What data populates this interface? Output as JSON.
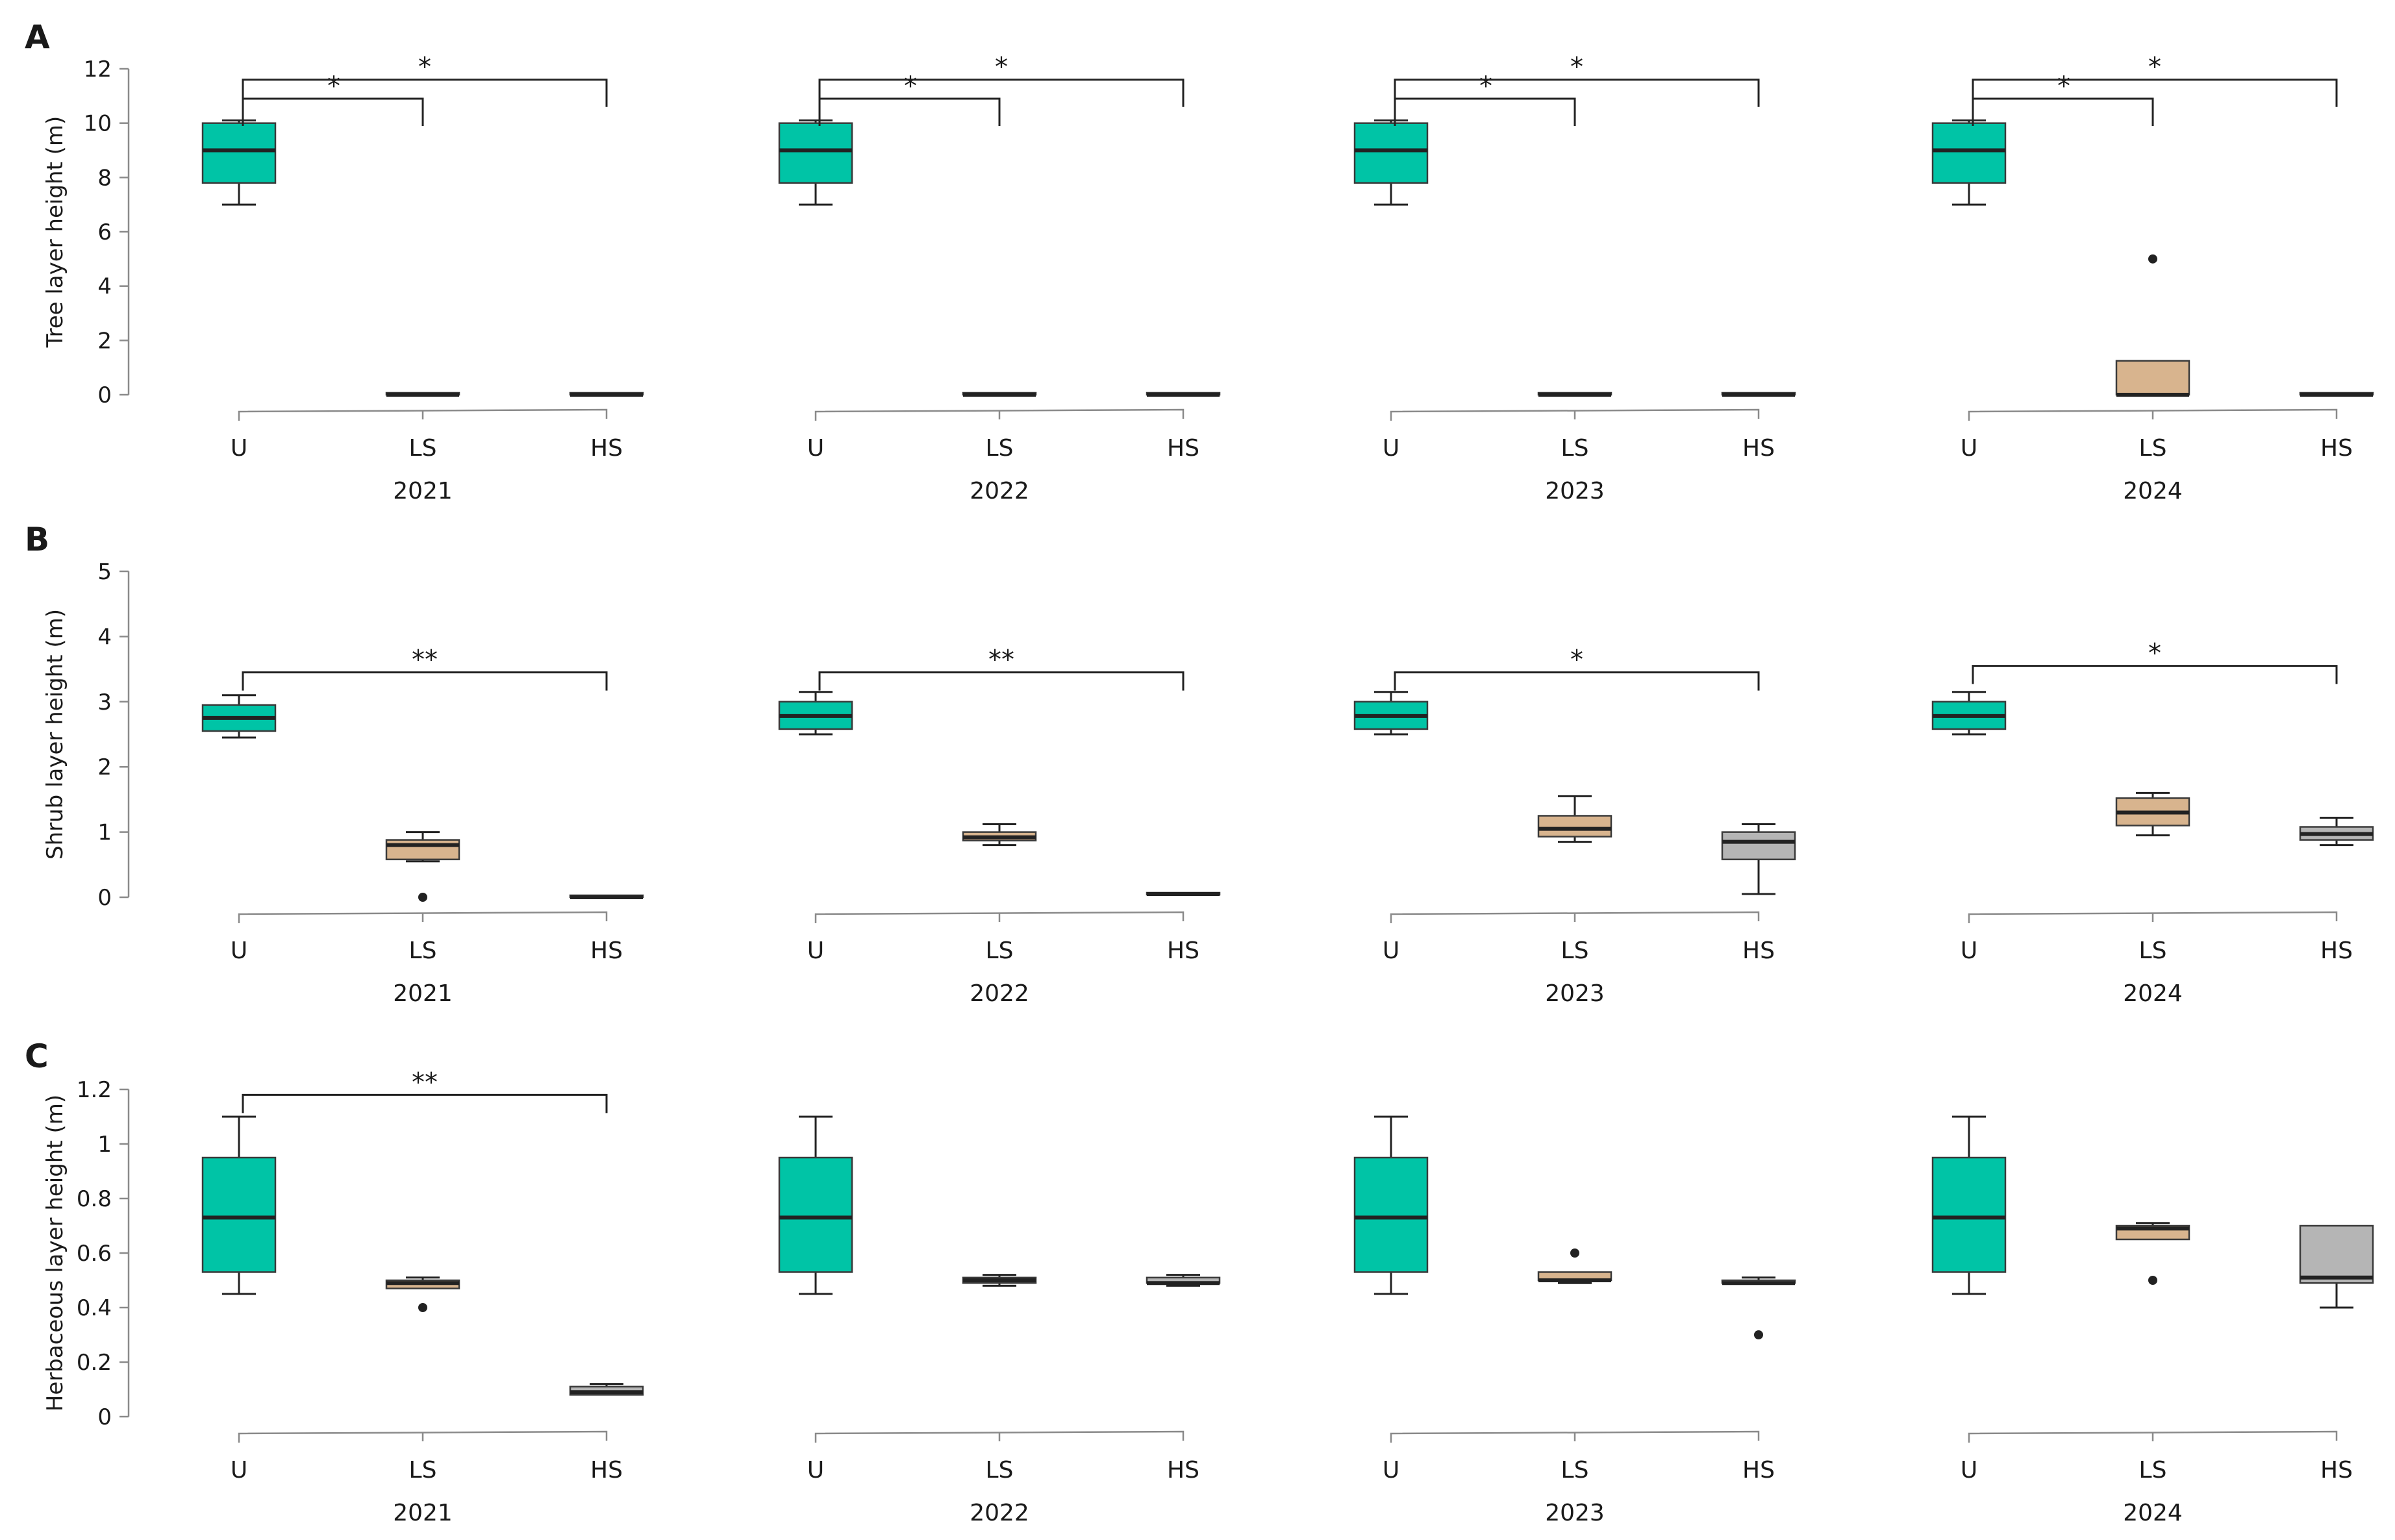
{
  "colors": {
    "U": "#00c4a6",
    "LS": "#d8b48e",
    "HS": "#b5b5b5",
    "line": "#222222"
  },
  "chart_data": [
    {
      "panel": "A",
      "type": "box",
      "ylabel": "Tree layer height (m)",
      "ylim": [
        0,
        12
      ],
      "yticks": [
        0,
        2,
        4,
        6,
        8,
        10,
        12
      ],
      "yticklabels": [
        "0",
        "2",
        "4",
        "6",
        "8",
        "10",
        "12"
      ],
      "categories": [
        "U",
        "LS",
        "HS"
      ],
      "years": [
        {
          "year": "2021",
          "boxes": [
            {
              "cat": "U",
              "min": 7.0,
              "q1": 7.8,
              "median": 9.0,
              "q3": 10.0,
              "max": 10.1,
              "outliers": []
            },
            {
              "cat": "LS",
              "min": 0,
              "q1": 0,
              "median": 0,
              "q3": 0,
              "max": 0,
              "outliers": []
            },
            {
              "cat": "HS",
              "min": 0,
              "q1": 0,
              "median": 0,
              "q3": 0,
              "max": 0,
              "outliers": []
            }
          ],
          "brackets": [
            {
              "from": "U",
              "to": "LS",
              "label": "*",
              "y": 10.9
            },
            {
              "from": "U",
              "to": "HS",
              "label": "*",
              "y": 11.6
            }
          ]
        },
        {
          "year": "2022",
          "boxes": [
            {
              "cat": "U",
              "min": 7.0,
              "q1": 7.8,
              "median": 9.0,
              "q3": 10.0,
              "max": 10.1,
              "outliers": []
            },
            {
              "cat": "LS",
              "min": 0,
              "q1": 0,
              "median": 0,
              "q3": 0,
              "max": 0,
              "outliers": []
            },
            {
              "cat": "HS",
              "min": 0,
              "q1": 0,
              "median": 0,
              "q3": 0,
              "max": 0,
              "outliers": []
            }
          ],
          "brackets": [
            {
              "from": "U",
              "to": "LS",
              "label": "*",
              "y": 10.9
            },
            {
              "from": "U",
              "to": "HS",
              "label": "*",
              "y": 11.6
            }
          ]
        },
        {
          "year": "2023",
          "boxes": [
            {
              "cat": "U",
              "min": 7.0,
              "q1": 7.8,
              "median": 9.0,
              "q3": 10.0,
              "max": 10.1,
              "outliers": []
            },
            {
              "cat": "LS",
              "min": 0,
              "q1": 0,
              "median": 0,
              "q3": 0,
              "max": 0,
              "outliers": []
            },
            {
              "cat": "HS",
              "min": 0,
              "q1": 0,
              "median": 0,
              "q3": 0,
              "max": 0,
              "outliers": []
            }
          ],
          "brackets": [
            {
              "from": "U",
              "to": "LS",
              "label": "*",
              "y": 10.9
            },
            {
              "from": "U",
              "to": "HS",
              "label": "*",
              "y": 11.6
            }
          ]
        },
        {
          "year": "2024",
          "boxes": [
            {
              "cat": "U",
              "min": 7.0,
              "q1": 7.8,
              "median": 9.0,
              "q3": 10.0,
              "max": 10.1,
              "outliers": []
            },
            {
              "cat": "LS",
              "min": 0,
              "q1": 0,
              "median": 0,
              "q3": 1.25,
              "max": 1.25,
              "outliers": [
                5.0
              ]
            },
            {
              "cat": "HS",
              "min": 0,
              "q1": 0,
              "median": 0,
              "q3": 0,
              "max": 0,
              "outliers": []
            }
          ],
          "brackets": [
            {
              "from": "U",
              "to": "LS",
              "label": "*",
              "y": 10.9
            },
            {
              "from": "U",
              "to": "HS",
              "label": "*",
              "y": 11.6
            }
          ]
        }
      ]
    },
    {
      "panel": "B",
      "type": "box",
      "ylabel": "Shrub layer height (m)",
      "ylim": [
        0,
        5
      ],
      "yticks": [
        0,
        1,
        2,
        3,
        4,
        5
      ],
      "yticklabels": [
        "0",
        "1",
        "2",
        "3",
        "4",
        "5"
      ],
      "categories": [
        "U",
        "LS",
        "HS"
      ],
      "years": [
        {
          "year": "2021",
          "boxes": [
            {
              "cat": "U",
              "min": 2.45,
              "q1": 2.55,
              "median": 2.75,
              "q3": 2.95,
              "max": 3.1,
              "outliers": []
            },
            {
              "cat": "LS",
              "min": 0.55,
              "q1": 0.58,
              "median": 0.8,
              "q3": 0.88,
              "max": 1.0,
              "outliers": [
                0.0
              ]
            },
            {
              "cat": "HS",
              "min": 0,
              "q1": 0,
              "median": 0,
              "q3": 0,
              "max": 0,
              "outliers": []
            }
          ],
          "brackets": [
            {
              "from": "U",
              "to": "HS",
              "label": "**",
              "y": 3.45
            }
          ]
        },
        {
          "year": "2022",
          "boxes": [
            {
              "cat": "U",
              "min": 2.5,
              "q1": 2.58,
              "median": 2.78,
              "q3": 3.0,
              "max": 3.15,
              "outliers": []
            },
            {
              "cat": "LS",
              "min": 0.8,
              "q1": 0.87,
              "median": 0.92,
              "q3": 1.0,
              "max": 1.12,
              "outliers": []
            },
            {
              "cat": "HS",
              "min": 0.04,
              "q1": 0.04,
              "median": 0.05,
              "q3": 0.06,
              "max": 0.06,
              "outliers": []
            }
          ],
          "brackets": [
            {
              "from": "U",
              "to": "HS",
              "label": "**",
              "y": 3.45
            }
          ]
        },
        {
          "year": "2023",
          "boxes": [
            {
              "cat": "U",
              "min": 2.5,
              "q1": 2.58,
              "median": 2.78,
              "q3": 3.0,
              "max": 3.15,
              "outliers": []
            },
            {
              "cat": "LS",
              "min": 0.85,
              "q1": 0.93,
              "median": 1.05,
              "q3": 1.25,
              "max": 1.55,
              "outliers": []
            },
            {
              "cat": "HS",
              "min": 0.05,
              "q1": 0.58,
              "median": 0.85,
              "q3": 1.0,
              "max": 1.12,
              "outliers": []
            }
          ],
          "brackets": [
            {
              "from": "U",
              "to": "HS",
              "label": "*",
              "y": 3.45
            }
          ]
        },
        {
          "year": "2024",
          "boxes": [
            {
              "cat": "U",
              "min": 2.5,
              "q1": 2.58,
              "median": 2.78,
              "q3": 3.0,
              "max": 3.15,
              "outliers": []
            },
            {
              "cat": "LS",
              "min": 0.95,
              "q1": 1.1,
              "median": 1.3,
              "q3": 1.52,
              "max": 1.6,
              "outliers": []
            },
            {
              "cat": "HS",
              "min": 0.8,
              "q1": 0.88,
              "median": 0.97,
              "q3": 1.08,
              "max": 1.22,
              "outliers": []
            }
          ],
          "brackets": [
            {
              "from": "U",
              "to": "HS",
              "label": "*",
              "y": 3.55
            }
          ]
        }
      ]
    },
    {
      "panel": "C",
      "type": "box",
      "ylabel": "Herbaceous layer height (m)",
      "ylim": [
        0,
        1.2
      ],
      "yticks": [
        0,
        0.2,
        0.4,
        0.6,
        0.8,
        1.0,
        1.2
      ],
      "yticklabels": [
        "0",
        "0.2",
        "0.4",
        "0.6",
        "0.8",
        "1",
        "1.2"
      ],
      "categories": [
        "U",
        "LS",
        "HS"
      ],
      "years": [
        {
          "year": "2021",
          "boxes": [
            {
              "cat": "U",
              "min": 0.45,
              "q1": 0.53,
              "median": 0.73,
              "q3": 0.95,
              "max": 1.1,
              "outliers": []
            },
            {
              "cat": "LS",
              "min": 0.47,
              "q1": 0.47,
              "median": 0.49,
              "q3": 0.5,
              "max": 0.51,
              "outliers": [
                0.4
              ]
            },
            {
              "cat": "HS",
              "min": 0.08,
              "q1": 0.08,
              "median": 0.09,
              "q3": 0.11,
              "max": 0.12,
              "outliers": []
            }
          ],
          "brackets": [
            {
              "from": "U",
              "to": "HS",
              "label": "**",
              "y": 1.18
            }
          ]
        },
        {
          "year": "2022",
          "boxes": [
            {
              "cat": "U",
              "min": 0.45,
              "q1": 0.53,
              "median": 0.73,
              "q3": 0.95,
              "max": 1.1,
              "outliers": []
            },
            {
              "cat": "LS",
              "min": 0.48,
              "q1": 0.49,
              "median": 0.5,
              "q3": 0.51,
              "max": 0.52,
              "outliers": []
            },
            {
              "cat": "HS",
              "min": 0.48,
              "q1": 0.49,
              "median": 0.49,
              "q3": 0.51,
              "max": 0.52,
              "outliers": []
            }
          ],
          "brackets": []
        },
        {
          "year": "2023",
          "boxes": [
            {
              "cat": "U",
              "min": 0.45,
              "q1": 0.53,
              "median": 0.73,
              "q3": 0.95,
              "max": 1.1,
              "outliers": []
            },
            {
              "cat": "LS",
              "min": 0.49,
              "q1": 0.5,
              "median": 0.5,
              "q3": 0.53,
              "max": 0.53,
              "outliers": [
                0.6
              ]
            },
            {
              "cat": "HS",
              "min": 0.49,
              "q1": 0.49,
              "median": 0.49,
              "q3": 0.5,
              "max": 0.51,
              "outliers": [
                0.3
              ]
            }
          ],
          "brackets": []
        },
        {
          "year": "2024",
          "boxes": [
            {
              "cat": "U",
              "min": 0.45,
              "q1": 0.53,
              "median": 0.73,
              "q3": 0.95,
              "max": 1.1,
              "outliers": []
            },
            {
              "cat": "LS",
              "min": 0.65,
              "q1": 0.65,
              "median": 0.69,
              "q3": 0.7,
              "max": 0.71,
              "outliers": [
                0.5
              ]
            },
            {
              "cat": "HS",
              "min": 0.4,
              "q1": 0.49,
              "median": 0.51,
              "q3": 0.7,
              "max": 0.7,
              "outliers": []
            }
          ],
          "brackets": []
        }
      ]
    }
  ]
}
